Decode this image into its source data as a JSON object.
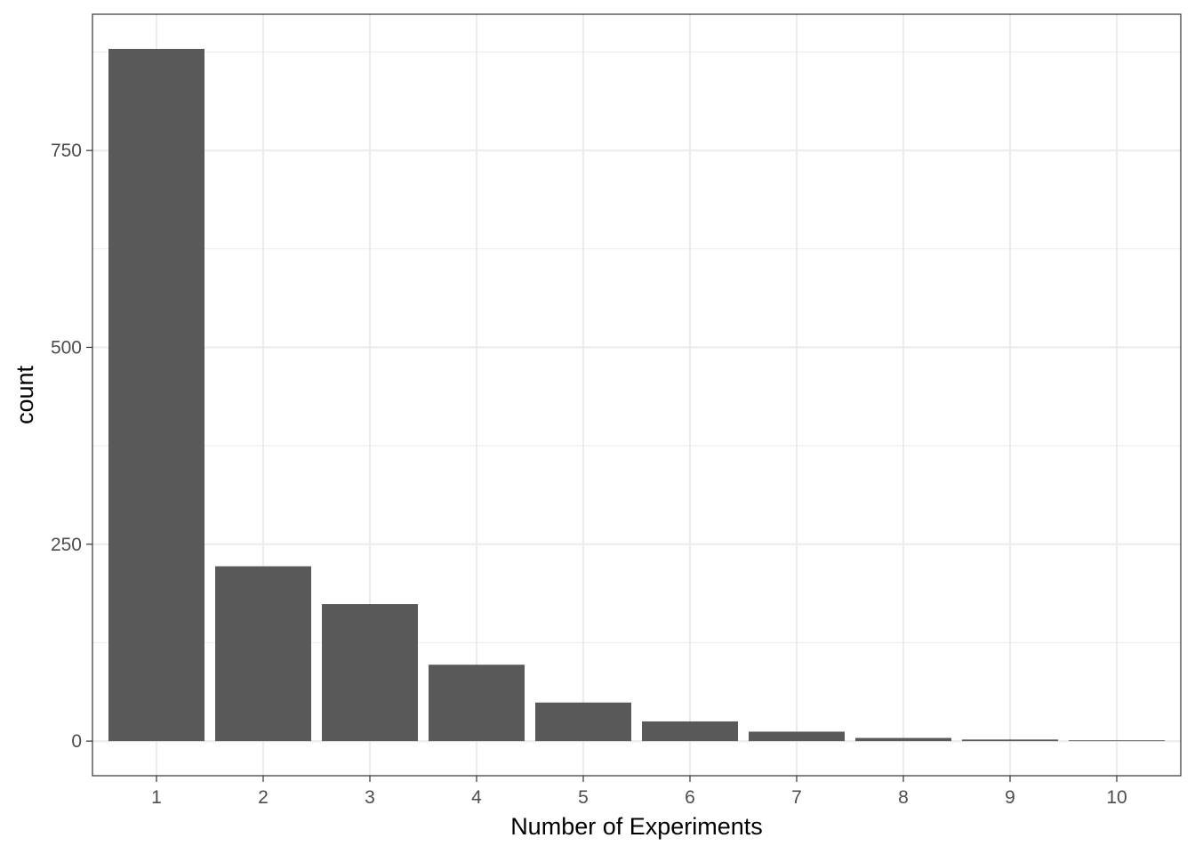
{
  "chart_data": {
    "type": "bar",
    "categories": [
      "1",
      "2",
      "3",
      "4",
      "5",
      "6",
      "7",
      "8",
      "9",
      "10"
    ],
    "values": [
      879,
      222,
      174,
      97,
      49,
      25,
      12,
      4,
      2,
      1
    ],
    "xlabel": "Number of Experiments",
    "ylabel": "count",
    "ylim": [
      -43.95,
      923
    ],
    "y_ticks": [
      0,
      250,
      500,
      750
    ],
    "y_tick_labels": [
      "0",
      "250",
      "500",
      "750"
    ],
    "grid": true,
    "bar_color": "#595959",
    "theme": "bw"
  }
}
